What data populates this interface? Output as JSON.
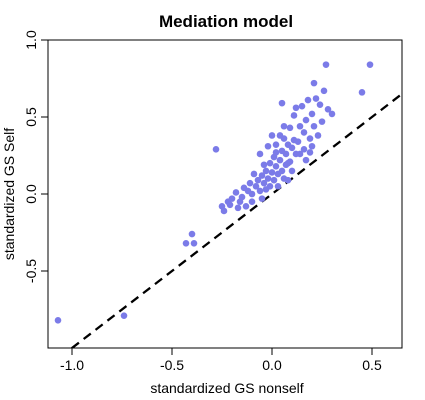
{
  "chart_data": {
    "type": "scatter",
    "title": "Mediation model",
    "xlabel": "standardized GS nonself",
    "ylabel": "standardized GS Self",
    "xlim": [
      -1.12,
      0.65
    ],
    "ylim": [
      -1.0,
      1.0
    ],
    "x_ticks": [
      -1.0,
      -0.5,
      0.0,
      0.5
    ],
    "x_tick_labels": [
      "-1.0",
      "-0.5",
      "0.0",
      "0.5"
    ],
    "y_ticks": [
      -0.5,
      0.0,
      0.5,
      1.0
    ],
    "y_tick_labels": [
      "-0.5",
      "0.0",
      "0.5",
      "1.0"
    ],
    "grid": false,
    "point_color": "#7b7be8",
    "reference_line": {
      "style": "dashed",
      "color": "#000000",
      "slope": 1.0,
      "intercept": 0.0
    },
    "points": [
      [
        -1.07,
        -0.82
      ],
      [
        -0.74,
        -0.79
      ],
      [
        -0.43,
        -0.32
      ],
      [
        -0.4,
        -0.26
      ],
      [
        -0.39,
        -0.32
      ],
      [
        -0.25,
        -0.08
      ],
      [
        -0.24,
        -0.11
      ],
      [
        -0.22,
        -0.05
      ],
      [
        -0.2,
        -0.03
      ],
      [
        -0.28,
        0.29
      ],
      [
        -0.18,
        0.01
      ],
      [
        -0.17,
        -0.09
      ],
      [
        -0.16,
        -0.05
      ],
      [
        -0.15,
        -0.02
      ],
      [
        -0.14,
        0.04
      ],
      [
        -0.13,
        -0.08
      ],
      [
        -0.12,
        0.02
      ],
      [
        -0.11,
        0.07
      ],
      [
        -0.1,
        0.0
      ],
      [
        -0.1,
        -0.05
      ],
      [
        -0.09,
        0.13
      ],
      [
        -0.08,
        0.05
      ],
      [
        -0.07,
        0.09
      ],
      [
        -0.06,
        0.02
      ],
      [
        -0.06,
        0.26
      ],
      [
        -0.05,
        0.12
      ],
      [
        -0.05,
        -0.03
      ],
      [
        -0.04,
        0.19
      ],
      [
        -0.04,
        0.07
      ],
      [
        -0.03,
        0.03
      ],
      [
        -0.03,
        0.15
      ],
      [
        -0.02,
        0.1
      ],
      [
        -0.01,
        0.2
      ],
      [
        -0.01,
        0.05
      ],
      [
        0.0,
        0.14
      ],
      [
        0.0,
        0.38
      ],
      [
        0.01,
        0.09
      ],
      [
        0.01,
        0.24
      ],
      [
        0.02,
        0.18
      ],
      [
        0.02,
        0.32
      ],
      [
        0.03,
        0.13
      ],
      [
        0.03,
        0.05
      ],
      [
        0.04,
        0.22
      ],
      [
        0.04,
        0.38
      ],
      [
        0.05,
        0.28
      ],
      [
        0.05,
        0.15
      ],
      [
        0.05,
        0.59
      ],
      [
        0.06,
        0.1
      ],
      [
        0.06,
        0.36
      ],
      [
        0.07,
        0.19
      ],
      [
        0.07,
        0.26
      ],
      [
        0.08,
        0.09
      ],
      [
        0.08,
        0.32
      ],
      [
        0.09,
        0.21
      ],
      [
        0.09,
        0.43
      ],
      [
        0.1,
        0.15
      ],
      [
        0.1,
        0.3
      ],
      [
        0.11,
        0.51
      ],
      [
        0.12,
        0.26
      ],
      [
        0.13,
        0.34
      ],
      [
        0.14,
        0.44
      ],
      [
        0.15,
        0.57
      ],
      [
        0.16,
        0.4
      ],
      [
        0.17,
        0.48
      ],
      [
        0.17,
        0.22
      ],
      [
        0.18,
        0.61
      ],
      [
        0.19,
        0.36
      ],
      [
        0.2,
        0.52
      ],
      [
        0.2,
        0.31
      ],
      [
        0.21,
        0.72
      ],
      [
        0.21,
        0.44
      ],
      [
        0.22,
        0.62
      ],
      [
        0.23,
        0.38
      ],
      [
        0.24,
        0.58
      ],
      [
        0.25,
        0.47
      ],
      [
        0.26,
        0.67
      ],
      [
        0.27,
        0.84
      ],
      [
        0.28,
        0.55
      ],
      [
        0.3,
        0.52
      ],
      [
        0.14,
        0.26
      ],
      [
        0.08,
        0.2
      ],
      [
        0.02,
        0.27
      ],
      [
        -0.02,
        0.31
      ],
      [
        0.11,
        0.35
      ],
      [
        0.19,
        0.27
      ],
      [
        0.12,
        0.56
      ],
      [
        -0.21,
        -0.07
      ],
      [
        0.16,
        0.29
      ],
      [
        0.06,
        0.44
      ],
      [
        0.45,
        0.66
      ],
      [
        0.49,
        0.84
      ]
    ]
  }
}
